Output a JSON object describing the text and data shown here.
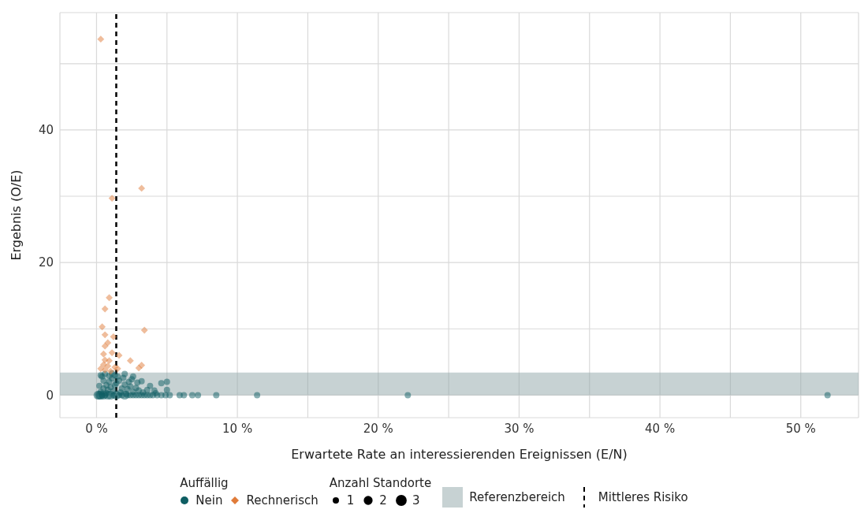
{
  "chart_data": {
    "type": "bubble",
    "xlabel": "Erwartete Rate an interessierenden Ereignissen (E/N)",
    "ylabel": "Ergebnis (O/E)",
    "legend_title": "Auffällig",
    "annotations": [
      "Anzahl Standorte"
    ],
    "xlim": [
      -2.6,
      54.1
    ],
    "ylim": [
      -3.4,
      57.7
    ],
    "xticks": [
      {
        "value": 0,
        "label": "0 %"
      },
      {
        "value": 5,
        "label": null
      },
      {
        "value": 10,
        "label": "10 %"
      },
      {
        "value": 15,
        "label": null
      },
      {
        "value": 20,
        "label": "20 %"
      },
      {
        "value": 25,
        "label": null
      },
      {
        "value": 30,
        "label": "30 %"
      },
      {
        "value": 35,
        "label": null
      },
      {
        "value": 40,
        "label": "40 %"
      },
      {
        "value": 45,
        "label": null
      },
      {
        "value": 50,
        "label": "50 %"
      }
    ],
    "yticks": [
      0,
      {
        "value": 10,
        "label": null
      },
      20,
      {
        "value": 30,
        "label": null
      },
      40,
      {
        "value": 50,
        "label": null
      }
    ],
    "grid": true,
    "legend": "bottom",
    "size_legend": [
      1,
      2,
      3
    ],
    "bands": [
      {
        "axis": "y",
        "from": 0,
        "to": 3.4,
        "label": "Referenzbereich",
        "color": "#8fa5a8"
      }
    ],
    "ref_lines": [
      {
        "axis": "x",
        "value": 1.4,
        "label": "Mittleres Risiko",
        "color": "#000000",
        "line_style": "dashed"
      }
    ],
    "series": [
      {
        "name": "Nein",
        "color": "#0e5e63",
        "marker": "circle",
        "x": [
          0.1,
          0.2,
          0.3,
          0.4,
          0.5,
          0.6,
          0.8,
          1.0,
          1.2,
          1.4,
          1.6,
          1.8,
          2.0,
          2.2,
          2.4,
          2.6,
          2.8,
          3.0,
          3.2,
          3.4,
          3.6,
          3.8,
          4.0,
          4.3,
          4.6,
          4.9,
          5.2,
          5.9,
          6.2,
          6.8,
          7.2,
          8.5,
          11.4,
          22.1,
          51.9,
          0.3,
          0.5,
          0.7,
          0.9,
          1.1,
          1.3,
          0.4,
          0.6,
          0.8,
          1.0,
          1.2,
          1.4,
          1.6,
          1.8,
          2.0,
          2.2,
          2.4,
          2.6,
          2.8,
          3.0,
          3.3,
          3.6,
          0.5,
          0.7,
          1.5,
          1.9,
          2.3,
          2.6,
          2.0,
          3.2,
          4.6,
          5.0,
          4.1,
          5.0,
          1.1,
          0.2,
          0.3,
          1.7,
          2.1,
          2.5,
          3.8,
          4.2,
          2.9,
          1.3,
          0.9
        ],
        "values": [
          0,
          0,
          0,
          0,
          0,
          0,
          0,
          0,
          0,
          0,
          0,
          0,
          0,
          0,
          0,
          0,
          0,
          0,
          0,
          0,
          0,
          0,
          0,
          0,
          0,
          0,
          0,
          0,
          0,
          0,
          0,
          0,
          0,
          0,
          0,
          0.5,
          1.0,
          1.5,
          2.0,
          2.5,
          3.0,
          2.8,
          3.2,
          0.8,
          1.2,
          0.6,
          1.8,
          2.2,
          1.0,
          1.6,
          0.9,
          1.3,
          0.5,
          1.1,
          0.7,
          0.4,
          0.8,
          2.2,
          0.3,
          2.8,
          2.6,
          2.0,
          2.8,
          3.2,
          2.1,
          1.8,
          2.0,
          0.7,
          0.8,
          3.3,
          1.4,
          3.0,
          0.4,
          0.2,
          2.4,
          1.4,
          0.3,
          1.9,
          1.5,
          2.9
        ],
        "sizes": [
          2,
          2,
          2,
          1,
          2,
          1,
          2,
          2,
          1,
          2,
          1,
          1,
          2,
          1,
          1,
          1,
          1,
          1,
          1,
          1,
          1,
          1,
          1,
          1,
          1,
          1,
          1,
          1,
          1,
          1,
          1,
          1,
          1,
          1,
          1,
          1,
          1,
          1,
          1,
          1,
          1,
          1,
          1,
          1,
          1,
          1,
          1,
          1,
          1,
          1,
          1,
          1,
          1,
          1,
          1,
          1,
          1,
          1,
          1,
          1,
          1,
          1,
          1,
          1,
          1,
          1,
          1,
          1,
          1,
          1,
          1,
          1,
          1,
          1,
          1,
          1,
          1,
          1,
          1,
          1
        ]
      },
      {
        "name": "Rechnerisch",
        "color": "#e07b39",
        "marker": "diamond",
        "x": [
          0.3,
          1.1,
          3.2,
          0.9,
          0.6,
          0.4,
          3.4,
          0.6,
          1.2,
          0.8,
          0.6,
          1.1,
          1.6,
          0.5,
          2.4,
          3.2,
          3.0,
          0.6,
          0.9,
          0.5,
          0.8,
          1.3,
          0.6,
          1.5,
          1.0,
          0.3
        ],
        "values": [
          53.7,
          29.7,
          31.2,
          14.7,
          13.0,
          10.3,
          9.8,
          9.1,
          8.8,
          7.9,
          7.4,
          6.4,
          6.0,
          6.2,
          5.2,
          4.5,
          4.1,
          5.3,
          5.2,
          4.6,
          4.4,
          4.2,
          3.8,
          4.0,
          3.6,
          4.0
        ],
        "sizes": [
          1,
          1,
          1,
          1,
          1,
          1,
          1,
          1,
          1,
          1,
          1,
          1,
          1,
          1,
          1,
          1,
          1,
          1,
          1,
          1,
          1,
          1,
          1,
          1,
          1,
          1
        ]
      }
    ]
  }
}
